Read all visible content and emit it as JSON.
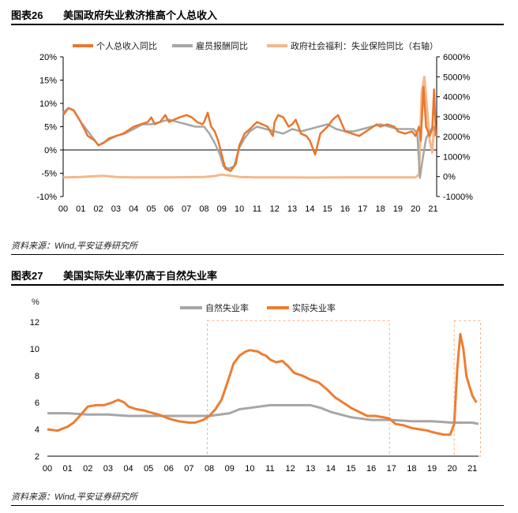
{
  "figures": [
    {
      "label": "图表26",
      "title": "美国政府失业救济推高个人总收入",
      "source": "资料来源：Wind,平安证券研究所"
    },
    {
      "label": "图表27",
      "title": "美国实际失业率仍高于自然失业率",
      "source": "资料来源：Wind,平安证券研究所"
    }
  ],
  "chart_data": [
    {
      "type": "line",
      "x_tick_labels": [
        "00",
        "01",
        "02",
        "03",
        "04",
        "05",
        "06",
        "07",
        "08",
        "09",
        "10",
        "11",
        "12",
        "13",
        "14",
        "15",
        "16",
        "17",
        "18",
        "19",
        "20",
        "21"
      ],
      "x_range": [
        2000,
        2021.2
      ],
      "left_axis": {
        "range": [
          -10,
          20
        ],
        "tick_labels": [
          "-10%",
          "-5%",
          "0%",
          "5%",
          "10%",
          "15%",
          "20%"
        ]
      },
      "right_axis": {
        "range": [
          -1000,
          6000
        ],
        "tick_labels": [
          "-1000%",
          "0%",
          "1000%",
          "2000%",
          "3000%",
          "4000%",
          "5000%",
          "6000%"
        ]
      },
      "grid": false,
      "legend_position": "top",
      "series": [
        {
          "name": "个人总收入同比",
          "axis": "left",
          "color": "#E8772E",
          "x": [
            2000.0,
            2000.3,
            2000.6,
            2001.0,
            2001.4,
            2001.8,
            2002.0,
            2002.3,
            2002.6,
            2003.0,
            2003.4,
            2003.8,
            2004.0,
            2004.4,
            2004.8,
            2005.0,
            2005.2,
            2005.5,
            2005.8,
            2006.0,
            2006.3,
            2006.6,
            2007.0,
            2007.3,
            2007.6,
            2007.9,
            2008.0,
            2008.2,
            2008.4,
            2008.6,
            2008.8,
            2009.0,
            2009.2,
            2009.5,
            2009.8,
            2010.0,
            2010.3,
            2010.6,
            2011.0,
            2011.3,
            2011.6,
            2011.9,
            2012.0,
            2012.2,
            2012.5,
            2012.8,
            2013.0,
            2013.2,
            2013.5,
            2013.8,
            2014.0,
            2014.3,
            2014.6,
            2015.0,
            2015.3,
            2015.6,
            2016.0,
            2016.4,
            2016.8,
            2017.0,
            2017.4,
            2017.8,
            2018.0,
            2018.4,
            2018.8,
            2019.0,
            2019.4,
            2019.8,
            2020.0,
            2020.2,
            2020.3,
            2020.45,
            2020.6,
            2020.8,
            2020.95,
            2021.05,
            2021.15
          ],
          "y": [
            7.5,
            9,
            8.5,
            6,
            3,
            2,
            1,
            1.5,
            2.5,
            3,
            3.5,
            4.5,
            5,
            5.5,
            6,
            7,
            5.5,
            6,
            7.5,
            6,
            6.5,
            7,
            7.5,
            7,
            6,
            5.5,
            6,
            8,
            5,
            4,
            2,
            -1,
            -4,
            -4.5,
            -3,
            1,
            3.5,
            4.5,
            6,
            5.5,
            5,
            3,
            6,
            7.5,
            7,
            5,
            5.5,
            6.5,
            3.5,
            3,
            2,
            -1,
            3.5,
            5,
            6.5,
            7.5,
            4,
            3.5,
            3,
            3.5,
            4.5,
            5.5,
            5,
            5.5,
            5,
            4,
            3.5,
            4,
            3,
            5,
            2,
            13.5,
            5,
            3,
            4.5,
            13,
            3
          ]
        },
        {
          "name": "雇员报酬同比",
          "axis": "left",
          "color": "#A6A6A6",
          "x": [
            2000.0,
            2000.3,
            2000.6,
            2001.0,
            2001.5,
            2002.0,
            2002.5,
            2003.0,
            2003.5,
            2004.0,
            2004.5,
            2005.0,
            2005.5,
            2006.0,
            2006.5,
            2007.0,
            2007.5,
            2008.0,
            2008.3,
            2008.6,
            2008.9,
            2009.1,
            2009.4,
            2009.7,
            2010.0,
            2010.3,
            2010.6,
            2011.0,
            2011.5,
            2012.0,
            2012.5,
            2013.0,
            2013.5,
            2014.0,
            2014.5,
            2015.0,
            2015.5,
            2016.0,
            2016.5,
            2017.0,
            2017.5,
            2018.0,
            2018.5,
            2019.0,
            2019.5,
            2019.9,
            2020.1,
            2020.25,
            2020.4,
            2020.6,
            2020.8,
            2021.0,
            2021.15
          ],
          "y": [
            8,
            9,
            8.5,
            6,
            3.5,
            1,
            2,
            3,
            3.5,
            4.5,
            5.5,
            5.5,
            6,
            6.5,
            6,
            5.5,
            5,
            5,
            3.5,
            1.5,
            -1,
            -3.5,
            -4,
            -3.5,
            0.5,
            2.5,
            4,
            5,
            4.5,
            4,
            3.5,
            4.5,
            4,
            4.5,
            5,
            5.5,
            4.5,
            4,
            4,
            4.5,
            5,
            5.5,
            5,
            4.5,
            4.5,
            4.5,
            3.5,
            -6,
            -2,
            2.5,
            4,
            5,
            4
          ]
        },
        {
          "name": "政府社会福利：失业保险同比（右轴）",
          "axis": "right",
          "color": "#F5B88A",
          "x": [
            2000.0,
            2001.0,
            2001.8,
            2002.3,
            2003.0,
            2004.0,
            2006.0,
            2008.0,
            2008.6,
            2009.0,
            2009.4,
            2010.0,
            2011.0,
            2012.0,
            2014.0,
            2016.0,
            2018.0,
            2019.0,
            2020.0,
            2020.2,
            2020.35,
            2020.5,
            2020.65,
            2020.8,
            2020.95,
            2021.05,
            2021.15
          ],
          "y": [
            -40,
            -20,
            20,
            40,
            -20,
            -40,
            -40,
            -20,
            30,
            100,
            60,
            -20,
            -40,
            -40,
            -50,
            -40,
            -40,
            -40,
            -40,
            100,
            4200,
            5000,
            3500,
            1800,
            1200,
            2500,
            2000
          ]
        }
      ]
    },
    {
      "type": "line",
      "y_unit": "%",
      "x_tick_labels": [
        "00",
        "01",
        "02",
        "03",
        "04",
        "05",
        "06",
        "07",
        "08",
        "09",
        "10",
        "11",
        "12",
        "13",
        "14",
        "15",
        "16",
        "17",
        "18",
        "19",
        "20",
        "21"
      ],
      "x_range": [
        2000,
        2021.3
      ],
      "ylim": [
        2,
        12
      ],
      "y_tick_labels": [
        "2",
        "4",
        "6",
        "8",
        "10",
        "12"
      ],
      "grid": false,
      "legend_position": "top",
      "highlight_boxes": [
        {
          "x_range": [
            2007.9,
            2016.9
          ],
          "y_range": [
            2,
            12.1
          ]
        },
        {
          "x_range": [
            2020.1,
            2021.4
          ],
          "y_range": [
            2,
            12.1
          ]
        }
      ],
      "series": [
        {
          "name": "自然失业率",
          "color": "#A6A6A6",
          "x": [
            2000.0,
            2001.0,
            2002.0,
            2003.0,
            2004.0,
            2005.0,
            2006.0,
            2007.0,
            2008.0,
            2009.0,
            2009.5,
            2010.0,
            2011.0,
            2011.5,
            2012.0,
            2012.5,
            2013.0,
            2013.5,
            2014.0,
            2015.0,
            2016.0,
            2017.0,
            2018.0,
            2019.0,
            2020.0,
            2021.0,
            2021.3
          ],
          "y": [
            5.2,
            5.2,
            5.1,
            5.1,
            5.0,
            5.0,
            5.0,
            5.0,
            5.0,
            5.2,
            5.5,
            5.6,
            5.8,
            5.8,
            5.8,
            5.8,
            5.8,
            5.6,
            5.3,
            4.9,
            4.7,
            4.7,
            4.6,
            4.6,
            4.5,
            4.5,
            4.4
          ]
        },
        {
          "name": "实际失业率",
          "color": "#ED7D31",
          "x": [
            2000.0,
            2000.5,
            2001.0,
            2001.3,
            2001.6,
            2002.0,
            2002.4,
            2002.8,
            2003.2,
            2003.5,
            2003.8,
            2004.0,
            2004.4,
            2004.8,
            2005.0,
            2005.5,
            2006.0,
            2006.5,
            2007.0,
            2007.3,
            2007.7,
            2008.0,
            2008.3,
            2008.6,
            2008.9,
            2009.2,
            2009.5,
            2009.8,
            2010.0,
            2010.4,
            2010.6,
            2010.8,
            2011.0,
            2011.3,
            2011.6,
            2011.9,
            2012.2,
            2012.6,
            2013.0,
            2013.4,
            2013.8,
            2014.2,
            2014.6,
            2015.0,
            2015.4,
            2015.8,
            2016.2,
            2016.6,
            2016.9,
            2017.2,
            2017.6,
            2018.0,
            2018.4,
            2018.8,
            2019.0,
            2019.3,
            2019.6,
            2019.9,
            2020.1,
            2020.25,
            2020.4,
            2020.55,
            2020.7,
            2020.85,
            2021.0,
            2021.2
          ],
          "y": [
            4.0,
            3.9,
            4.2,
            4.5,
            5.0,
            5.7,
            5.8,
            5.8,
            6.0,
            6.2,
            6.0,
            5.7,
            5.5,
            5.4,
            5.3,
            5.1,
            4.8,
            4.6,
            4.5,
            4.5,
            4.7,
            5.0,
            5.5,
            6.2,
            7.5,
            8.9,
            9.5,
            9.8,
            9.9,
            9.8,
            9.6,
            9.5,
            9.2,
            9.0,
            9.1,
            8.7,
            8.2,
            8.0,
            7.7,
            7.5,
            7.0,
            6.4,
            6.0,
            5.6,
            5.3,
            5.0,
            5.0,
            4.9,
            4.8,
            4.4,
            4.3,
            4.1,
            4.0,
            3.9,
            3.8,
            3.7,
            3.6,
            3.6,
            4.4,
            8.5,
            11.1,
            10.0,
            8.0,
            7.2,
            6.5,
            6.0
          ]
        }
      ]
    }
  ]
}
